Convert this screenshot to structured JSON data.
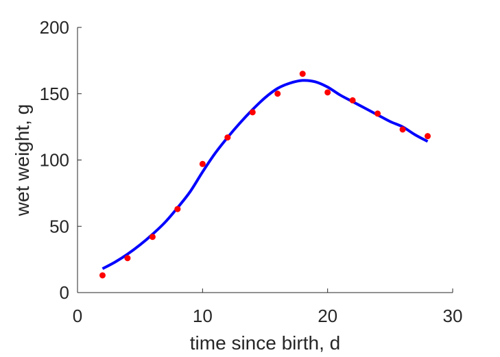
{
  "chart_data": {
    "type": "scatter",
    "title": "",
    "xlabel": "time since birth, d",
    "ylabel": "wet weight, g",
    "xlim": [
      0,
      30
    ],
    "ylim": [
      0,
      200
    ],
    "xticks": [
      0,
      10,
      20,
      30
    ],
    "yticks": [
      0,
      50,
      100,
      150,
      200
    ],
    "grid": false,
    "box": false,
    "series": [
      {
        "kind": "points",
        "color": "#ff0000",
        "x": [
          2,
          4,
          6,
          8,
          10,
          12,
          14,
          16,
          18,
          20,
          22,
          24,
          26,
          28
        ],
        "y": [
          13,
          26,
          42,
          63,
          97,
          117,
          136,
          150,
          165,
          151,
          145,
          135,
          123,
          118
        ]
      },
      {
        "kind": "fitted-line",
        "color": "#0000ff",
        "x": [
          2,
          3,
          4,
          5,
          6,
          7,
          8,
          9,
          10,
          11,
          12,
          13,
          14,
          15,
          16,
          17,
          18,
          19,
          20,
          21,
          22,
          23,
          24,
          25,
          26,
          27,
          28
        ],
        "y": [
          18,
          23,
          29,
          36,
          44,
          53,
          64,
          76,
          91,
          105,
          117,
          128,
          138,
          147,
          154,
          158,
          160,
          159,
          155,
          149,
          144,
          139,
          134,
          129,
          125,
          119,
          114
        ]
      }
    ]
  }
}
